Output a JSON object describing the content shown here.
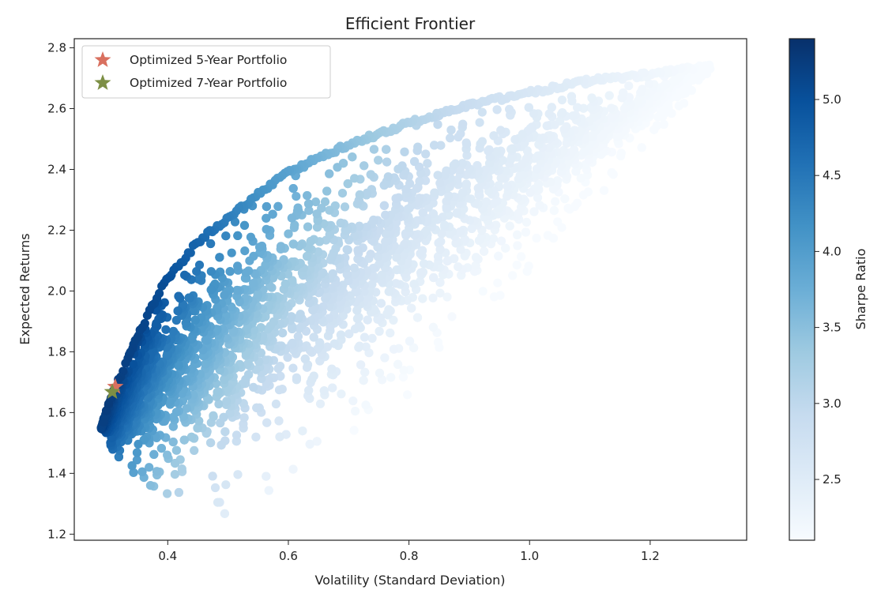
{
  "chart_data": {
    "type": "scatter",
    "title": "Efficient Frontier",
    "xlabel": "Volatility (Standard Deviation)",
    "ylabel": "Expected Returns",
    "xlim": [
      0.245,
      1.36
    ],
    "ylim": [
      1.18,
      2.83
    ],
    "xticks": [
      0.4,
      0.6,
      0.8,
      1.0,
      1.2
    ],
    "xtick_labels": [
      "0.4",
      "0.6",
      "0.8",
      "1.0",
      "1.2"
    ],
    "yticks": [
      1.2,
      1.4,
      1.6,
      1.8,
      2.0,
      2.2,
      2.4,
      2.6,
      2.8
    ],
    "ytick_labels": [
      "1.2",
      "1.4",
      "1.6",
      "1.8",
      "2.0",
      "2.2",
      "2.4",
      "2.6",
      "2.8"
    ],
    "grid": false,
    "legend_position": "top-left",
    "colormap": "Blues",
    "colorbar": {
      "label": "Sharpe Ratio",
      "range": [
        2.1,
        5.4
      ],
      "ticks": [
        2.5,
        3.0,
        3.5,
        4.0,
        4.5,
        5.0
      ],
      "tick_labels": [
        "2.5",
        "3.0",
        "3.5",
        "4.0",
        "4.5",
        "5.0"
      ]
    },
    "cloud": {
      "description_of_shape": "random portfolios",
      "frontier": [
        [
          0.29,
          1.55
        ],
        [
          0.3,
          1.63
        ],
        [
          0.32,
          1.72
        ],
        [
          0.35,
          1.86
        ],
        [
          0.39,
          2.02
        ],
        [
          0.45,
          2.17
        ],
        [
          0.52,
          2.28
        ],
        [
          0.6,
          2.4
        ],
        [
          0.7,
          2.49
        ],
        [
          0.8,
          2.56
        ],
        [
          0.9,
          2.62
        ],
        [
          1.0,
          2.66
        ],
        [
          1.1,
          2.7
        ],
        [
          1.2,
          2.72
        ],
        [
          1.31,
          2.75
        ]
      ],
      "lower": [
        [
          0.29,
          1.55
        ],
        [
          0.31,
          1.47
        ],
        [
          0.35,
          1.38
        ],
        [
          0.4,
          1.33
        ],
        [
          0.45,
          1.29
        ],
        [
          0.5,
          1.26
        ],
        [
          0.55,
          1.32
        ],
        [
          0.6,
          1.38
        ],
        [
          0.7,
          1.5
        ],
        [
          0.8,
          1.66
        ],
        [
          0.9,
          1.87
        ],
        [
          1.0,
          2.06
        ],
        [
          1.1,
          2.28
        ],
        [
          1.2,
          2.48
        ],
        [
          1.31,
          2.75
        ]
      ],
      "sharpe_max": 5.4,
      "sharpe_min": 2.1
    },
    "series": [
      {
        "name": "Optimized 5-Year Portfolio",
        "marker": "star",
        "color": "#d9705f",
        "x": [
          0.313
        ],
        "y": [
          1.685
        ]
      },
      {
        "name": "Optimized 7-Year Portfolio",
        "marker": "star",
        "color": "#7d8f45",
        "x": [
          0.308
        ],
        "y": [
          1.668
        ]
      }
    ]
  }
}
